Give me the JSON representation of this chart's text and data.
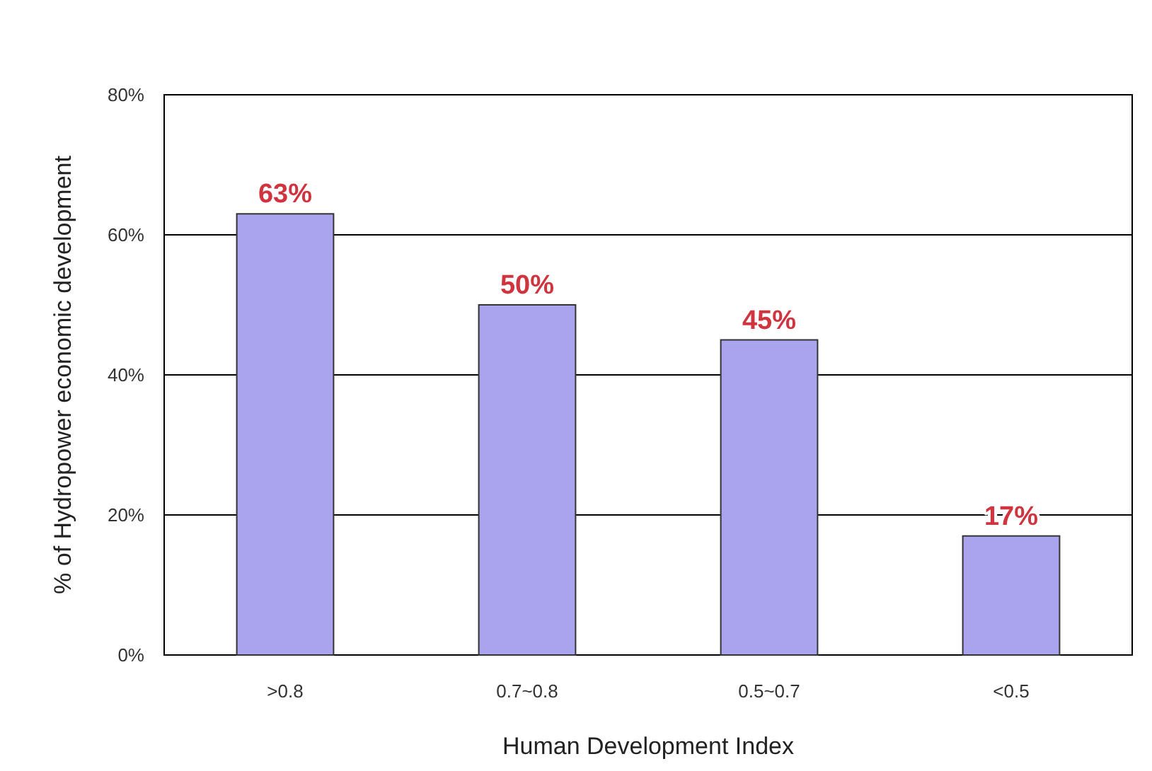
{
  "chart_data": {
    "type": "bar",
    "xlabel": "Human Development Index",
    "ylabel": "% of Hydropower economic development",
    "categories": [
      ">0.8",
      "0.7~0.8",
      "0.5~0.7",
      "<0.5"
    ],
    "values": [
      63,
      50,
      45,
      17
    ],
    "color": "#aaa4ee",
    "value_labels": [
      "63%",
      "50%",
      "45%",
      "17%"
    ],
    "ylim": [
      0,
      80
    ],
    "yticks": [
      {
        "value": 0,
        "label": "0%"
      },
      {
        "value": 20,
        "label": "20%"
      },
      {
        "value": 40,
        "label": "40%"
      },
      {
        "value": 60,
        "label": "60%"
      },
      {
        "value": 80,
        "label": "80%"
      }
    ],
    "grid": "y"
  }
}
